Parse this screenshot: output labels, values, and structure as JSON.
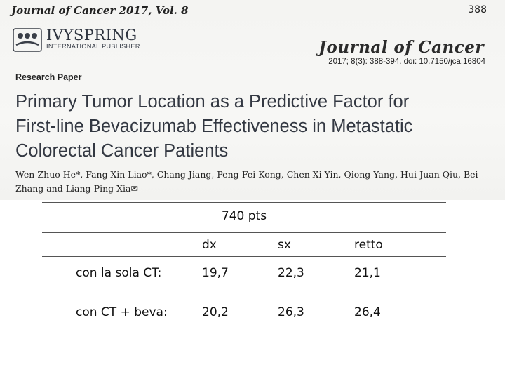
{
  "journal": {
    "header": "Journal of Cancer 2017, Vol. 8",
    "page": "388",
    "publisher_name": "IVYSPRING",
    "publisher_sub": "INTERNATIONAL PUBLISHER",
    "logo_text": "Journal of Cancer",
    "citation": "2017; 8(3): 388-394. doi: 10.7150/jca.16804"
  },
  "paper": {
    "type": "Research Paper",
    "title_lines": [
      "Primary Tumor Location as a Predictive Factor for",
      "First-line Bevacizumab Effectiveness in Metastatic",
      "Colorectal Cancer Patients"
    ],
    "authors_lines": [
      "Wen-Zhuo He*, Fang-Xin Liao*, Chang Jiang, Peng-Fei Kong, Chen-Xi Yin, Qiong Yang, Hui-Juan Qiu, Bei",
      "Zhang and Liang-Ping Xia✉"
    ]
  },
  "table": {
    "caption": "740 pts",
    "columns": [
      "dx",
      "sx",
      "retto"
    ],
    "rows": [
      {
        "label": "con la sola CT:",
        "values": [
          "19,7",
          "22,3",
          "21,1"
        ]
      },
      {
        "label": "con CT + beva:",
        "values": [
          "20,2",
          "26,3",
          "26,4"
        ]
      }
    ]
  }
}
